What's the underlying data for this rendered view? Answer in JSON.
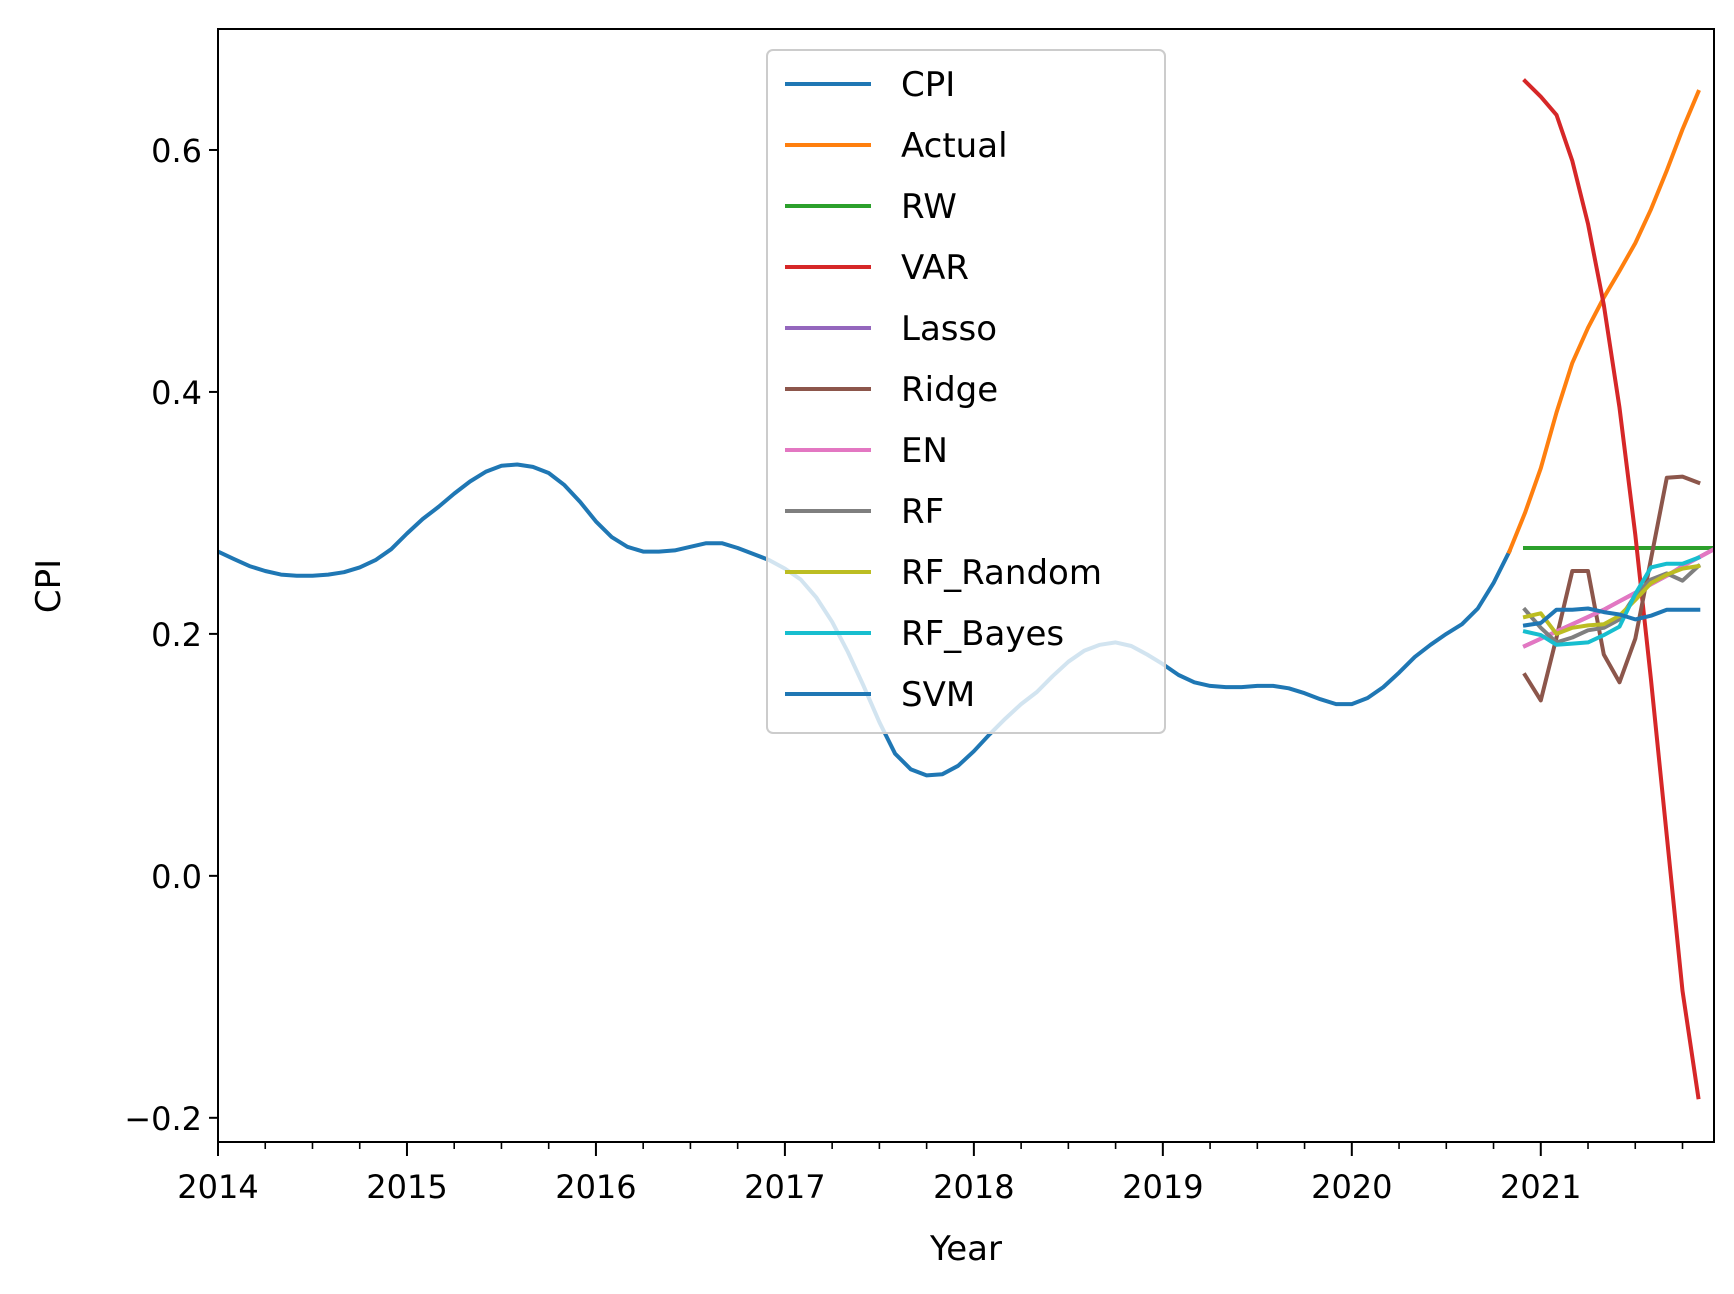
{
  "chart_data": {
    "type": "line",
    "title": "",
    "xlabel": "Year",
    "ylabel": "CPI",
    "xlim": [
      "2014-01",
      "2021-12"
    ],
    "ylim": [
      -0.22,
      0.7
    ],
    "x_ticks": [
      "2014",
      "2015",
      "2016",
      "2017",
      "2018",
      "2019",
      "2020",
      "2021"
    ],
    "y_ticks": [
      "−0.2",
      "0.0",
      "0.2",
      "0.4",
      "0.6"
    ],
    "y_tick_values": [
      -0.2,
      0.0,
      0.2,
      0.4,
      0.6
    ],
    "grid": false,
    "legend_position": "upper center",
    "series": [
      {
        "name": "CPI",
        "color": "#1f77b4",
        "points": [
          [
            "2014-01",
            0.268
          ],
          [
            "2014-02",
            0.262
          ],
          [
            "2014-03",
            0.256
          ],
          [
            "2014-04",
            0.252
          ],
          [
            "2014-05",
            0.249
          ],
          [
            "2014-06",
            0.248
          ],
          [
            "2014-07",
            0.248
          ],
          [
            "2014-08",
            0.249
          ],
          [
            "2014-09",
            0.251
          ],
          [
            "2014-10",
            0.255
          ],
          [
            "2014-11",
            0.261
          ],
          [
            "2014-12",
            0.27
          ],
          [
            "2015-01",
            0.283
          ],
          [
            "2015-02",
            0.295
          ],
          [
            "2015-03",
            0.305
          ],
          [
            "2015-04",
            0.316
          ],
          [
            "2015-05",
            0.326
          ],
          [
            "2015-06",
            0.334
          ],
          [
            "2015-07",
            0.339
          ],
          [
            "2015-08",
            0.34
          ],
          [
            "2015-09",
            0.338
          ],
          [
            "2015-10",
            0.333
          ],
          [
            "2015-11",
            0.323
          ],
          [
            "2015-12",
            0.309
          ],
          [
            "2016-01",
            0.293
          ],
          [
            "2016-02",
            0.28
          ],
          [
            "2016-03",
            0.272
          ],
          [
            "2016-04",
            0.268
          ],
          [
            "2016-05",
            0.268
          ],
          [
            "2016-06",
            0.269
          ],
          [
            "2016-07",
            0.272
          ],
          [
            "2016-08",
            0.275
          ],
          [
            "2016-09",
            0.275
          ],
          [
            "2016-10",
            0.271
          ],
          [
            "2016-11",
            0.266
          ],
          [
            "2016-12",
            0.261
          ],
          [
            "2017-01",
            0.254
          ],
          [
            "2017-02",
            0.245
          ],
          [
            "2017-03",
            0.23
          ],
          [
            "2017-04",
            0.21
          ],
          [
            "2017-05",
            0.185
          ],
          [
            "2017-06",
            0.157
          ],
          [
            "2017-07",
            0.127
          ],
          [
            "2017-08",
            0.101
          ],
          [
            "2017-09",
            0.088
          ],
          [
            "2017-10",
            0.083
          ],
          [
            "2017-11",
            0.084
          ],
          [
            "2017-12",
            0.091
          ],
          [
            "2018-01",
            0.103
          ],
          [
            "2018-02",
            0.117
          ],
          [
            "2018-03",
            0.13
          ],
          [
            "2018-04",
            0.142
          ],
          [
            "2018-05",
            0.152
          ],
          [
            "2018-06",
            0.165
          ],
          [
            "2018-07",
            0.177
          ],
          [
            "2018-08",
            0.186
          ],
          [
            "2018-09",
            0.191
          ],
          [
            "2018-10",
            0.193
          ],
          [
            "2018-11",
            0.19
          ],
          [
            "2018-12",
            0.183
          ],
          [
            "2019-01",
            0.175
          ],
          [
            "2019-02",
            0.166
          ],
          [
            "2019-03",
            0.16
          ],
          [
            "2019-04",
            0.157
          ],
          [
            "2019-05",
            0.156
          ],
          [
            "2019-06",
            0.156
          ],
          [
            "2019-07",
            0.157
          ],
          [
            "2019-08",
            0.157
          ],
          [
            "2019-09",
            0.155
          ],
          [
            "2019-10",
            0.151
          ],
          [
            "2019-11",
            0.146
          ],
          [
            "2019-12",
            0.142
          ],
          [
            "2020-01",
            0.142
          ],
          [
            "2020-02",
            0.147
          ],
          [
            "2020-03",
            0.156
          ],
          [
            "2020-04",
            0.168
          ],
          [
            "2020-05",
            0.181
          ],
          [
            "2020-06",
            0.191
          ],
          [
            "2020-07",
            0.2
          ],
          [
            "2020-08",
            0.208
          ],
          [
            "2020-09",
            0.221
          ],
          [
            "2020-10",
            0.242
          ],
          [
            "2020-11",
            0.268
          ]
        ]
      },
      {
        "name": "Actual",
        "color": "#ff7f0e",
        "points": [
          [
            "2020-11",
            0.268
          ],
          [
            "2020-12",
            0.3
          ],
          [
            "2021-01",
            0.337
          ],
          [
            "2021-02",
            0.383
          ],
          [
            "2021-03",
            0.424
          ],
          [
            "2021-04",
            0.453
          ],
          [
            "2021-05",
            0.478
          ],
          [
            "2021-06",
            0.5
          ],
          [
            "2021-07",
            0.523
          ],
          [
            "2021-08",
            0.551
          ],
          [
            "2021-09",
            0.583
          ],
          [
            "2021-10",
            0.617
          ],
          [
            "2021-11",
            0.648
          ]
        ]
      },
      {
        "name": "RW",
        "color": "#2ca02c",
        "points": [
          [
            "2020-12",
            0.271
          ],
          [
            "2021-01",
            0.271
          ],
          [
            "2021-02",
            0.271
          ],
          [
            "2021-03",
            0.271
          ],
          [
            "2021-04",
            0.271
          ],
          [
            "2021-05",
            0.271
          ],
          [
            "2021-06",
            0.271
          ],
          [
            "2021-07",
            0.271
          ],
          [
            "2021-08",
            0.271
          ],
          [
            "2021-09",
            0.271
          ],
          [
            "2021-10",
            0.271
          ],
          [
            "2021-11",
            0.271
          ],
          [
            "2021-12",
            0.271
          ]
        ]
      },
      {
        "name": "VAR",
        "color": "#d62728",
        "points": [
          [
            "2020-12",
            0.657
          ],
          [
            "2021-01",
            0.644
          ],
          [
            "2021-02",
            0.629
          ],
          [
            "2021-03",
            0.591
          ],
          [
            "2021-04",
            0.539
          ],
          [
            "2021-05",
            0.472
          ],
          [
            "2021-06",
            0.387
          ],
          [
            "2021-07",
            0.282
          ],
          [
            "2021-08",
            0.162
          ],
          [
            "2021-09",
            0.033
          ],
          [
            "2021-10",
            -0.095
          ],
          [
            "2021-11",
            -0.183
          ]
        ]
      },
      {
        "name": "Lasso",
        "color": "#9467bd",
        "points": [
          [
            "2020-12",
            0.19
          ],
          [
            "2021-01",
            0.196
          ],
          [
            "2021-02",
            0.202
          ],
          [
            "2021-03",
            0.208
          ],
          [
            "2021-04",
            0.214
          ],
          [
            "2021-05",
            0.22
          ],
          [
            "2021-06",
            0.227
          ],
          [
            "2021-07",
            0.234
          ],
          [
            "2021-08",
            0.241
          ],
          [
            "2021-09",
            0.248
          ],
          [
            "2021-10",
            0.256
          ],
          [
            "2021-11",
            0.263
          ],
          [
            "2021-12",
            0.27
          ]
        ]
      },
      {
        "name": "Ridge",
        "color": "#8c564b",
        "points": [
          [
            "2020-12",
            0.166
          ],
          [
            "2021-01",
            0.145
          ],
          [
            "2021-02",
            0.197
          ],
          [
            "2021-03",
            0.252
          ],
          [
            "2021-04",
            0.252
          ],
          [
            "2021-05",
            0.183
          ],
          [
            "2021-06",
            0.16
          ],
          [
            "2021-07",
            0.196
          ],
          [
            "2021-08",
            0.262
          ],
          [
            "2021-09",
            0.329
          ],
          [
            "2021-10",
            0.33
          ],
          [
            "2021-11",
            0.325
          ]
        ]
      },
      {
        "name": "EN",
        "color": "#e377c2",
        "points": [
          [
            "2020-12",
            0.19
          ],
          [
            "2021-01",
            0.196
          ],
          [
            "2021-02",
            0.202
          ],
          [
            "2021-03",
            0.208
          ],
          [
            "2021-04",
            0.214
          ],
          [
            "2021-05",
            0.22
          ],
          [
            "2021-06",
            0.227
          ],
          [
            "2021-07",
            0.234
          ],
          [
            "2021-08",
            0.241
          ],
          [
            "2021-09",
            0.248
          ],
          [
            "2021-10",
            0.256
          ],
          [
            "2021-11",
            0.263
          ],
          [
            "2021-12",
            0.27
          ]
        ]
      },
      {
        "name": "RF",
        "color": "#7f7f7f",
        "points": [
          [
            "2020-12",
            0.22
          ],
          [
            "2021-01",
            0.205
          ],
          [
            "2021-02",
            0.193
          ],
          [
            "2021-03",
            0.197
          ],
          [
            "2021-04",
            0.203
          ],
          [
            "2021-05",
            0.205
          ],
          [
            "2021-06",
            0.212
          ],
          [
            "2021-07",
            0.232
          ],
          [
            "2021-08",
            0.245
          ],
          [
            "2021-09",
            0.25
          ],
          [
            "2021-10",
            0.244
          ],
          [
            "2021-11",
            0.256
          ]
        ]
      },
      {
        "name": "RF_Random",
        "color": "#bcbd22",
        "points": [
          [
            "2020-12",
            0.214
          ],
          [
            "2021-01",
            0.217
          ],
          [
            "2021-02",
            0.2
          ],
          [
            "2021-03",
            0.205
          ],
          [
            "2021-04",
            0.207
          ],
          [
            "2021-05",
            0.208
          ],
          [
            "2021-06",
            0.215
          ],
          [
            "2021-07",
            0.228
          ],
          [
            "2021-08",
            0.242
          ],
          [
            "2021-09",
            0.249
          ],
          [
            "2021-10",
            0.254
          ],
          [
            "2021-11",
            0.256
          ]
        ]
      },
      {
        "name": "RF_Bayes",
        "color": "#17becf",
        "points": [
          [
            "2020-12",
            0.202
          ],
          [
            "2021-01",
            0.199
          ],
          [
            "2021-02",
            0.191
          ],
          [
            "2021-03",
            0.192
          ],
          [
            "2021-04",
            0.193
          ],
          [
            "2021-05",
            0.199
          ],
          [
            "2021-06",
            0.206
          ],
          [
            "2021-07",
            0.233
          ],
          [
            "2021-08",
            0.255
          ],
          [
            "2021-09",
            0.258
          ],
          [
            "2021-10",
            0.258
          ],
          [
            "2021-11",
            0.263
          ]
        ]
      },
      {
        "name": "SVM",
        "color": "#1f77b4",
        "points": [
          [
            "2020-12",
            0.207
          ],
          [
            "2021-01",
            0.209
          ],
          [
            "2021-02",
            0.22
          ],
          [
            "2021-03",
            0.22
          ],
          [
            "2021-04",
            0.221
          ],
          [
            "2021-05",
            0.218
          ],
          [
            "2021-06",
            0.216
          ],
          [
            "2021-07",
            0.212
          ],
          [
            "2021-08",
            0.215
          ],
          [
            "2021-09",
            0.22
          ],
          [
            "2021-10",
            0.22
          ],
          [
            "2021-11",
            0.22
          ]
        ]
      }
    ]
  }
}
